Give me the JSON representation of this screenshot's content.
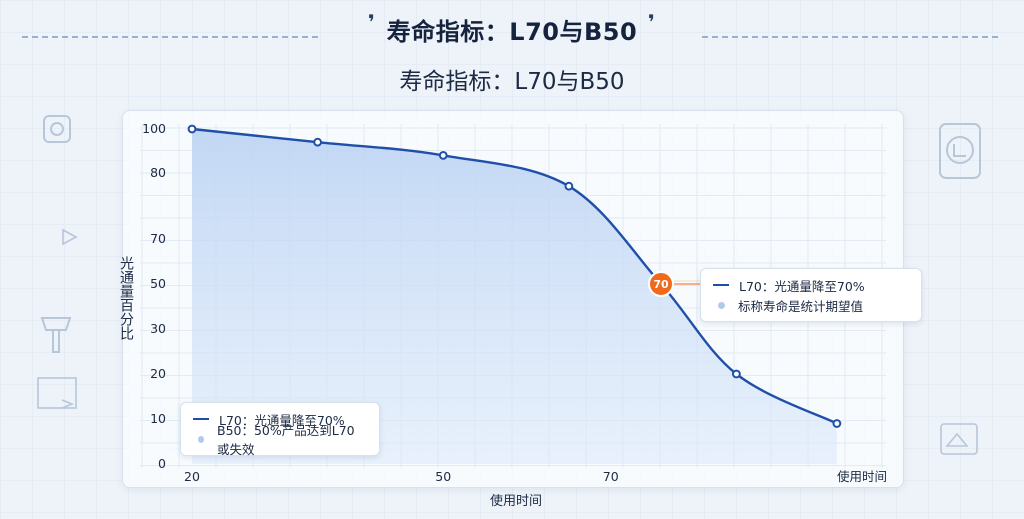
{
  "header": {
    "title": "寿命指标：L70与B50",
    "subtitle": "寿命指标：L70与B50"
  },
  "colors": {
    "line": "#1f4fa8",
    "fill": "#c9dcf6",
    "highlight": "#ef6a1a",
    "legend_dot": "#b4c8ea"
  },
  "chart_data": {
    "type": "line",
    "title": "寿命指标：L70与B50",
    "xlabel": "使用时间",
    "ylabel": "光通量百分比",
    "x_ticks": [
      "20",
      "50",
      "70",
      "使用时间"
    ],
    "y_ticks": [
      "0",
      "10",
      "20",
      "30",
      "50",
      "70",
      "80",
      "100"
    ],
    "series": [
      {
        "name": "L70：光通量降至70%",
        "x": [
          20,
          35,
          50,
          65,
          76,
          85,
          97
        ],
        "y": [
          100,
          94,
          88,
          78,
          50,
          20,
          9
        ]
      }
    ],
    "highlight_point": {
      "label": "70",
      "x": 76,
      "y": 50
    },
    "legend": [
      {
        "label": "L70：光通量降至70%",
        "marker": "line"
      },
      {
        "label": "B50：50%产品达到L70或失效",
        "marker": "dot"
      }
    ],
    "callout_legend": [
      {
        "label": "L70：光通量降至70%",
        "marker": "line"
      },
      {
        "label": "标称寿命是统计期望值",
        "marker": "dot"
      }
    ],
    "grid": true
  }
}
